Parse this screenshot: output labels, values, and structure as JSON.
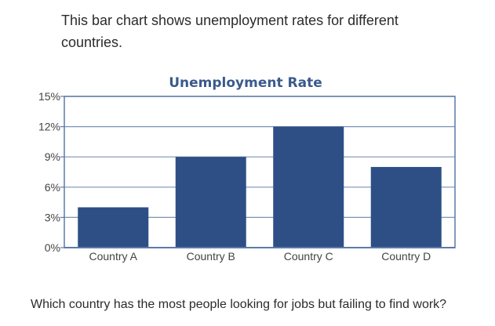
{
  "intro_text": "This bar chart shows unemployment rates for different countries.",
  "question_text": "Which country has the most people looking for jobs but failing to find work?",
  "colors": {
    "bar": "#2d4f86",
    "title": "#3a5a8c",
    "axis": "#5c7aa6",
    "grid": "#7a93b8",
    "tick_text": "#444444"
  },
  "chart_data": {
    "type": "bar",
    "title": "Unemployment Rate",
    "xlabel": "",
    "ylabel": "",
    "categories": [
      "Country A",
      "Country B",
      "Country C",
      "Country D"
    ],
    "values": [
      4,
      9,
      12,
      8
    ],
    "ylim": [
      0,
      15
    ],
    "y_ticks": [
      0,
      3,
      6,
      9,
      12,
      15
    ],
    "y_tick_labels": [
      "0%",
      "3%",
      "6%",
      "9%",
      "12%",
      "15%"
    ],
    "grid": true,
    "legend": "none"
  }
}
